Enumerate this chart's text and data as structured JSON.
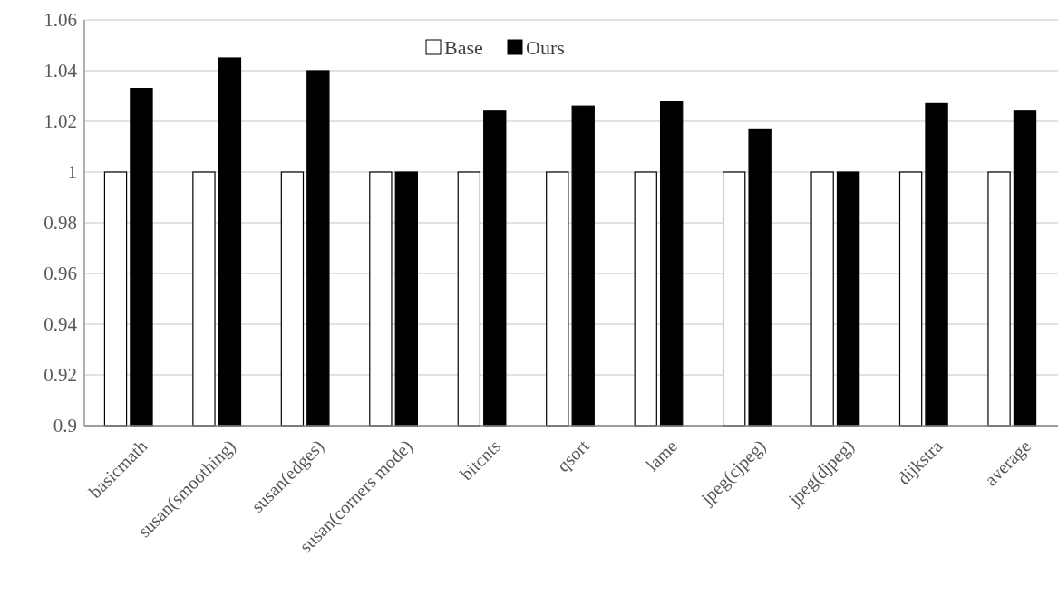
{
  "chart_data": {
    "type": "bar",
    "categories": [
      "basicmath",
      "susan(smoothing)",
      "susan(edges)",
      "susan(corners mode)",
      "bitcnts",
      "qsort",
      "lame",
      "jpeg(cjpeg)",
      "jpeg(djpeg)",
      "dijkstra",
      "average"
    ],
    "series": [
      {
        "name": "Base",
        "color": "#ffffff",
        "values": [
          1,
          1,
          1,
          1,
          1,
          1,
          1,
          1,
          1,
          1,
          1
        ]
      },
      {
        "name": "Ours",
        "color": "#000000",
        "values": [
          1.033,
          1.045,
          1.04,
          1.0,
          1.024,
          1.026,
          1.028,
          1.017,
          1.0,
          1.027,
          1.024
        ]
      }
    ],
    "ylim": [
      0.9,
      1.06
    ],
    "yticks": [
      0.9,
      0.92,
      0.94,
      0.96,
      0.98,
      1,
      1.02,
      1.04,
      1.06
    ],
    "grid": "y",
    "legend": "top"
  }
}
